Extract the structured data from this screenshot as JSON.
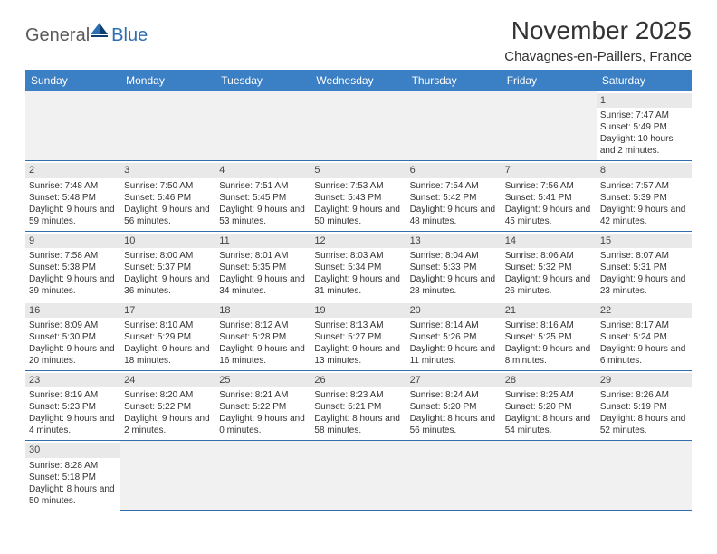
{
  "logo": {
    "part1": "General",
    "part2": "Blue"
  },
  "title": "November 2025",
  "location": "Chavagnes-en-Paillers, France",
  "colors": {
    "header_bg": "#3b7fc4",
    "rule": "#2f6faf",
    "daynum_bg": "#e9e9e9",
    "empty_bg": "#f1f1f1",
    "logo_gray": "#5a5a5a",
    "logo_blue": "#2b6fb0"
  },
  "weekdays": [
    "Sunday",
    "Monday",
    "Tuesday",
    "Wednesday",
    "Thursday",
    "Friday",
    "Saturday"
  ],
  "weeks": [
    [
      null,
      null,
      null,
      null,
      null,
      null,
      {
        "n": "1",
        "sr": "Sunrise: 7:47 AM",
        "ss": "Sunset: 5:49 PM",
        "dl": "Daylight: 10 hours and 2 minutes."
      }
    ],
    [
      {
        "n": "2",
        "sr": "Sunrise: 7:48 AM",
        "ss": "Sunset: 5:48 PM",
        "dl": "Daylight: 9 hours and 59 minutes."
      },
      {
        "n": "3",
        "sr": "Sunrise: 7:50 AM",
        "ss": "Sunset: 5:46 PM",
        "dl": "Daylight: 9 hours and 56 minutes."
      },
      {
        "n": "4",
        "sr": "Sunrise: 7:51 AM",
        "ss": "Sunset: 5:45 PM",
        "dl": "Daylight: 9 hours and 53 minutes."
      },
      {
        "n": "5",
        "sr": "Sunrise: 7:53 AM",
        "ss": "Sunset: 5:43 PM",
        "dl": "Daylight: 9 hours and 50 minutes."
      },
      {
        "n": "6",
        "sr": "Sunrise: 7:54 AM",
        "ss": "Sunset: 5:42 PM",
        "dl": "Daylight: 9 hours and 48 minutes."
      },
      {
        "n": "7",
        "sr": "Sunrise: 7:56 AM",
        "ss": "Sunset: 5:41 PM",
        "dl": "Daylight: 9 hours and 45 minutes."
      },
      {
        "n": "8",
        "sr": "Sunrise: 7:57 AM",
        "ss": "Sunset: 5:39 PM",
        "dl": "Daylight: 9 hours and 42 minutes."
      }
    ],
    [
      {
        "n": "9",
        "sr": "Sunrise: 7:58 AM",
        "ss": "Sunset: 5:38 PM",
        "dl": "Daylight: 9 hours and 39 minutes."
      },
      {
        "n": "10",
        "sr": "Sunrise: 8:00 AM",
        "ss": "Sunset: 5:37 PM",
        "dl": "Daylight: 9 hours and 36 minutes."
      },
      {
        "n": "11",
        "sr": "Sunrise: 8:01 AM",
        "ss": "Sunset: 5:35 PM",
        "dl": "Daylight: 9 hours and 34 minutes."
      },
      {
        "n": "12",
        "sr": "Sunrise: 8:03 AM",
        "ss": "Sunset: 5:34 PM",
        "dl": "Daylight: 9 hours and 31 minutes."
      },
      {
        "n": "13",
        "sr": "Sunrise: 8:04 AM",
        "ss": "Sunset: 5:33 PM",
        "dl": "Daylight: 9 hours and 28 minutes."
      },
      {
        "n": "14",
        "sr": "Sunrise: 8:06 AM",
        "ss": "Sunset: 5:32 PM",
        "dl": "Daylight: 9 hours and 26 minutes."
      },
      {
        "n": "15",
        "sr": "Sunrise: 8:07 AM",
        "ss": "Sunset: 5:31 PM",
        "dl": "Daylight: 9 hours and 23 minutes."
      }
    ],
    [
      {
        "n": "16",
        "sr": "Sunrise: 8:09 AM",
        "ss": "Sunset: 5:30 PM",
        "dl": "Daylight: 9 hours and 20 minutes."
      },
      {
        "n": "17",
        "sr": "Sunrise: 8:10 AM",
        "ss": "Sunset: 5:29 PM",
        "dl": "Daylight: 9 hours and 18 minutes."
      },
      {
        "n": "18",
        "sr": "Sunrise: 8:12 AM",
        "ss": "Sunset: 5:28 PM",
        "dl": "Daylight: 9 hours and 16 minutes."
      },
      {
        "n": "19",
        "sr": "Sunrise: 8:13 AM",
        "ss": "Sunset: 5:27 PM",
        "dl": "Daylight: 9 hours and 13 minutes."
      },
      {
        "n": "20",
        "sr": "Sunrise: 8:14 AM",
        "ss": "Sunset: 5:26 PM",
        "dl": "Daylight: 9 hours and 11 minutes."
      },
      {
        "n": "21",
        "sr": "Sunrise: 8:16 AM",
        "ss": "Sunset: 5:25 PM",
        "dl": "Daylight: 9 hours and 8 minutes."
      },
      {
        "n": "22",
        "sr": "Sunrise: 8:17 AM",
        "ss": "Sunset: 5:24 PM",
        "dl": "Daylight: 9 hours and 6 minutes."
      }
    ],
    [
      {
        "n": "23",
        "sr": "Sunrise: 8:19 AM",
        "ss": "Sunset: 5:23 PM",
        "dl": "Daylight: 9 hours and 4 minutes."
      },
      {
        "n": "24",
        "sr": "Sunrise: 8:20 AM",
        "ss": "Sunset: 5:22 PM",
        "dl": "Daylight: 9 hours and 2 minutes."
      },
      {
        "n": "25",
        "sr": "Sunrise: 8:21 AM",
        "ss": "Sunset: 5:22 PM",
        "dl": "Daylight: 9 hours and 0 minutes."
      },
      {
        "n": "26",
        "sr": "Sunrise: 8:23 AM",
        "ss": "Sunset: 5:21 PM",
        "dl": "Daylight: 8 hours and 58 minutes."
      },
      {
        "n": "27",
        "sr": "Sunrise: 8:24 AM",
        "ss": "Sunset: 5:20 PM",
        "dl": "Daylight: 8 hours and 56 minutes."
      },
      {
        "n": "28",
        "sr": "Sunrise: 8:25 AM",
        "ss": "Sunset: 5:20 PM",
        "dl": "Daylight: 8 hours and 54 minutes."
      },
      {
        "n": "29",
        "sr": "Sunrise: 8:26 AM",
        "ss": "Sunset: 5:19 PM",
        "dl": "Daylight: 8 hours and 52 minutes."
      }
    ],
    [
      {
        "n": "30",
        "sr": "Sunrise: 8:28 AM",
        "ss": "Sunset: 5:18 PM",
        "dl": "Daylight: 8 hours and 50 minutes."
      },
      null,
      null,
      null,
      null,
      null,
      null
    ]
  ]
}
